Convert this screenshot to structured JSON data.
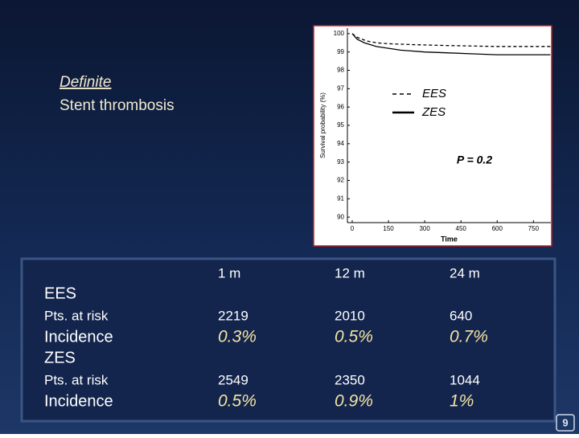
{
  "slide": {
    "title_line1": "Definite",
    "title_line2": "Stent thrombosis",
    "page_number": "9"
  },
  "chart_data": {
    "type": "line",
    "xlabel": "Time",
    "ylabel": "Survival probability (%)",
    "annotation": "P = 0.2",
    "xlim": [
      -20,
      822
    ],
    "xticks": [
      0,
      150,
      300,
      450,
      600,
      750
    ],
    "ylim": [
      89.7,
      100.3
    ],
    "yticks": [
      90,
      91,
      92,
      93,
      94,
      95,
      96,
      97,
      98,
      99,
      100
    ],
    "series": [
      {
        "name": "EES",
        "color": "#000000",
        "dash": true,
        "x": [
          0,
          20,
          40,
          60,
          100,
          150,
          250,
          400,
          600,
          820
        ],
        "values": [
          100,
          99.8,
          99.7,
          99.6,
          99.5,
          99.45,
          99.4,
          99.35,
          99.3,
          99.3
        ]
      },
      {
        "name": "ZES",
        "color": "#000000",
        "dash": false,
        "x": [
          0,
          20,
          50,
          100,
          150,
          200,
          300,
          400,
          500,
          600,
          820
        ],
        "values": [
          100,
          99.7,
          99.5,
          99.3,
          99.2,
          99.1,
          99.0,
          98.95,
          98.9,
          98.85,
          98.85
        ]
      }
    ]
  },
  "table": {
    "header": [
      "1 m",
      "12 m",
      "24 m"
    ],
    "groups": [
      {
        "name": "EES",
        "rows": [
          {
            "label": "Pts. at risk",
            "cells": [
              "2219",
              "2010",
              "640"
            ]
          },
          {
            "label": "Incidence",
            "cells": [
              "0.3%",
              "0.5%",
              "0.7%"
            ]
          }
        ]
      },
      {
        "name": "ZES",
        "rows": [
          {
            "label": "Pts. at risk",
            "cells": [
              "2549",
              "2350",
              "1044"
            ]
          },
          {
            "label": "Incidence",
            "cells": [
              "0.5%",
              "0.9%",
              "1%"
            ]
          }
        ]
      }
    ]
  }
}
